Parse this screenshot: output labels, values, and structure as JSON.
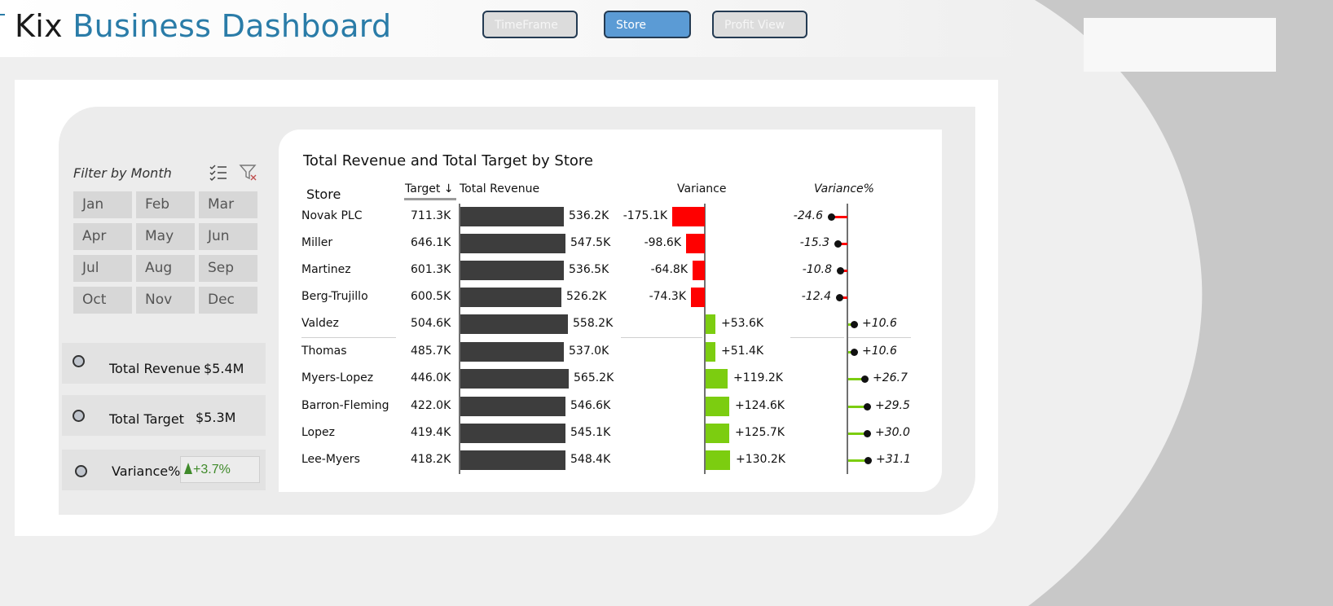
{
  "header": {
    "title_part1": "Kix",
    "title_part2": "Business Dashboard",
    "nav": [
      {
        "label": "TimeFrame",
        "active": false
      },
      {
        "label": "Store",
        "active": true
      },
      {
        "label": "Profit View",
        "active": false
      }
    ]
  },
  "filter": {
    "title": "Filter by Month",
    "months": [
      "Jan",
      "Feb",
      "Mar",
      "Apr",
      "May",
      "Jun",
      "Jul",
      "Aug",
      "Sep",
      "Oct",
      "Nov",
      "Dec"
    ]
  },
  "kpis": {
    "revenue": {
      "label": "Total Revenue",
      "value": "$5.4M"
    },
    "target": {
      "label": "Total Target",
      "value": "$5.3M"
    },
    "variance": {
      "label": "Variance%",
      "value": "+3.7%"
    }
  },
  "colors": {
    "accent": "#2a7ca8",
    "negative": "#ff0000",
    "positive": "#7ccd10",
    "revenue_bar": "#3d3d3d"
  },
  "chart_data": {
    "type": "table",
    "title": "Total Revenue and Total Target by Store",
    "columns": {
      "store": "Store",
      "target": "Target",
      "revenue": "Total Revenue",
      "variance": "Variance",
      "variance_pct": "Variance%"
    },
    "sorted_by": "Target",
    "sort_direction": "descending",
    "rows": [
      {
        "store": "Novak PLC",
        "target": "711.3K",
        "revenue": "536.2K",
        "revenue_value": 536.2,
        "variance": "-175.1K",
        "variance_value": -175.1,
        "variance_pct": "-24.6",
        "variance_pct_value": -24.6
      },
      {
        "store": "Miller",
        "target": "646.1K",
        "revenue": "547.5K",
        "revenue_value": 547.5,
        "variance": "-98.6K",
        "variance_value": -98.6,
        "variance_pct": "-15.3",
        "variance_pct_value": -15.3
      },
      {
        "store": "Martinez",
        "target": "601.3K",
        "revenue": "536.5K",
        "revenue_value": 536.5,
        "variance": "-64.8K",
        "variance_value": -64.8,
        "variance_pct": "-10.8",
        "variance_pct_value": -10.8
      },
      {
        "store": "Berg-Trujillo",
        "target": "600.5K",
        "revenue": "526.2K",
        "revenue_value": 526.2,
        "variance": "-74.3K",
        "variance_value": -74.3,
        "variance_pct": "-12.4",
        "variance_pct_value": -12.4
      },
      {
        "store": "Valdez",
        "target": "504.6K",
        "revenue": "558.2K",
        "revenue_value": 558.2,
        "variance": "+53.6K",
        "variance_value": 53.6,
        "variance_pct": "+10.6",
        "variance_pct_value": 10.6
      },
      {
        "store": "Thomas",
        "target": "485.7K",
        "revenue": "537.0K",
        "revenue_value": 537.0,
        "variance": "+51.4K",
        "variance_value": 51.4,
        "variance_pct": "+10.6",
        "variance_pct_value": 10.6
      },
      {
        "store": "Myers-Lopez",
        "target": "446.0K",
        "revenue": "565.2K",
        "revenue_value": 565.2,
        "variance": "+119.2K",
        "variance_value": 119.2,
        "variance_pct": "+26.7",
        "variance_pct_value": 26.7
      },
      {
        "store": "Barron-Fleming",
        "target": "422.0K",
        "revenue": "546.6K",
        "revenue_value": 546.6,
        "variance": "+124.6K",
        "variance_value": 124.6,
        "variance_pct": "+29.5",
        "variance_pct_value": 29.5
      },
      {
        "store": "Lopez",
        "target": "419.4K",
        "revenue": "545.1K",
        "revenue_value": 545.1,
        "variance": "+125.7K",
        "variance_value": 125.7,
        "variance_pct": "+30.0",
        "variance_pct_value": 30.0
      },
      {
        "store": "Lee-Myers",
        "target": "418.2K",
        "revenue": "548.4K",
        "revenue_value": 548.4,
        "variance": "+130.2K",
        "variance_value": 130.2,
        "variance_pct": "+31.1",
        "variance_pct_value": 31.1
      }
    ]
  }
}
